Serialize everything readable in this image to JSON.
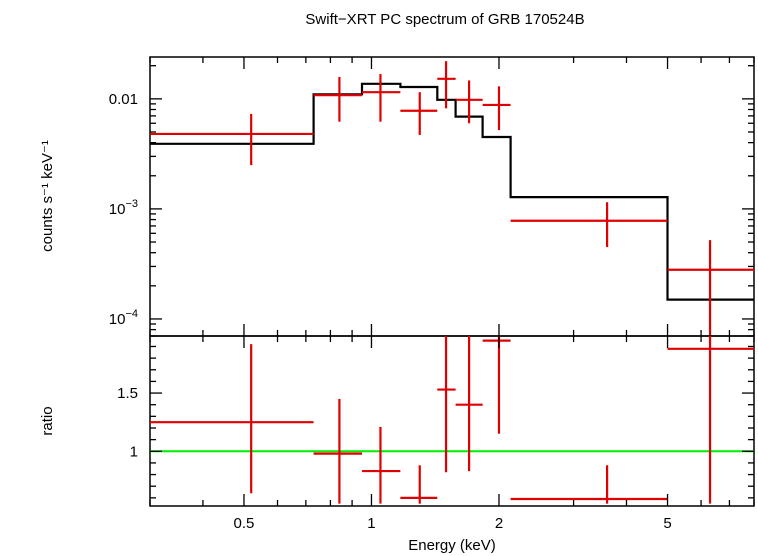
{
  "chart_data": [
    {
      "type": "scatter",
      "title": "Swift−XRT PC spectrum of GRB 170524B",
      "xlabel": "Energy (keV)",
      "ylabel": "counts s⁻¹ keV⁻¹",
      "x_scale": "log",
      "y_scale": "log",
      "xlim": [
        0.3,
        8.0
      ],
      "ylim": [
        7e-05,
        0.024
      ],
      "x_ticks": [
        {
          "value": 0.5,
          "label": "0.5"
        },
        {
          "value": 1,
          "label": "1"
        },
        {
          "value": 2,
          "label": "2"
        },
        {
          "value": 5,
          "label": "5"
        }
      ],
      "y_ticks": [
        {
          "value": 0.01,
          "label": "0.01",
          "base": "",
          "exp": ""
        },
        {
          "value": 0.001,
          "label": "",
          "base": "10",
          "exp": "−3"
        },
        {
          "value": 0.0001,
          "label": "",
          "base": "10",
          "exp": "−4"
        }
      ],
      "series": [
        {
          "kind": "data",
          "color": "#e00000",
          "points": [
            {
              "x": 0.52,
              "xlo": 0.3,
              "xhi": 0.73,
              "y": 0.0048,
              "ylo": 0.0025,
              "yhi": 0.0073
            },
            {
              "x": 0.84,
              "xlo": 0.73,
              "xhi": 0.95,
              "y": 0.0108,
              "ylo": 0.0062,
              "yhi": 0.0158
            },
            {
              "x": 1.05,
              "xlo": 0.95,
              "xhi": 1.17,
              "y": 0.0115,
              "ylo": 0.0062,
              "yhi": 0.0168
            },
            {
              "x": 1.3,
              "xlo": 1.17,
              "xhi": 1.43,
              "y": 0.0078,
              "ylo": 0.0047,
              "yhi": 0.0115
            },
            {
              "x": 1.5,
              "xlo": 1.43,
              "xhi": 1.58,
              "y": 0.0152,
              "ylo": 0.0082,
              "yhi": 0.022
            },
            {
              "x": 1.7,
              "xlo": 1.58,
              "xhi": 1.83,
              "y": 0.0098,
              "ylo": 0.006,
              "yhi": 0.0147
            },
            {
              "x": 2.0,
              "xlo": 1.83,
              "xhi": 2.13,
              "y": 0.0088,
              "ylo": 0.0052,
              "yhi": 0.013
            },
            {
              "x": 3.6,
              "xlo": 2.13,
              "xhi": 5.0,
              "y": 0.00078,
              "ylo": 0.00045,
              "yhi": 0.00115
            },
            {
              "x": 6.3,
              "xlo": 5.0,
              "xhi": 8.0,
              "y": 0.00028,
              "ylo": 7e-05,
              "yhi": 0.00052
            }
          ]
        },
        {
          "kind": "model",
          "color": "#000000",
          "steps": [
            {
              "xlo": 0.3,
              "xhi": 0.73,
              "y": 0.0039
            },
            {
              "xlo": 0.73,
              "xhi": 0.95,
              "y": 0.011
            },
            {
              "xlo": 0.95,
              "xhi": 1.17,
              "y": 0.0137
            },
            {
              "xlo": 1.17,
              "xhi": 1.43,
              "y": 0.0128
            },
            {
              "xlo": 1.43,
              "xhi": 1.58,
              "y": 0.0098
            },
            {
              "xlo": 1.58,
              "xhi": 1.83,
              "y": 0.0069
            },
            {
              "xlo": 1.83,
              "xhi": 2.13,
              "y": 0.0045
            },
            {
              "xlo": 2.13,
              "xhi": 5.0,
              "y": 0.00128
            },
            {
              "xlo": 5.0,
              "xhi": 8.0,
              "y": 0.00015
            }
          ]
        }
      ]
    },
    {
      "type": "scatter",
      "ylabel": "ratio",
      "x_scale": "log",
      "y_scale": "linear",
      "xlim": [
        0.3,
        8.0
      ],
      "ylim": [
        0.53,
        1.99
      ],
      "y_ticks": [
        {
          "value": 1,
          "label": "1"
        },
        {
          "value": 1.5,
          "label": "1.5"
        }
      ],
      "reference_line": {
        "y": 1,
        "color": "#00ee00"
      },
      "series": [
        {
          "kind": "ratio",
          "color": "#e00000",
          "points": [
            {
              "x": 0.52,
              "xlo": 0.3,
              "xhi": 0.73,
              "y": 1.25,
              "ylo": 0.64,
              "yhi": 1.92
            },
            {
              "x": 0.84,
              "xlo": 0.73,
              "xhi": 0.95,
              "y": 0.98,
              "ylo": 0.55,
              "yhi": 1.45
            },
            {
              "x": 1.05,
              "xlo": 0.95,
              "xhi": 1.17,
              "y": 0.83,
              "ylo": 0.55,
              "yhi": 1.21
            },
            {
              "x": 1.3,
              "xlo": 1.17,
              "xhi": 1.43,
              "y": 0.6,
              "ylo": 0.55,
              "yhi": 0.88
            },
            {
              "x": 1.5,
              "xlo": 1.43,
              "xhi": 1.58,
              "y": 1.53,
              "ylo": 0.82,
              "yhi": 1.99
            },
            {
              "x": 1.7,
              "xlo": 1.58,
              "xhi": 1.83,
              "y": 1.4,
              "ylo": 0.83,
              "yhi": 1.99
            },
            {
              "x": 2.0,
              "xlo": 1.83,
              "xhi": 2.13,
              "y": 1.95,
              "ylo": 1.15,
              "yhi": 1.99
            },
            {
              "x": 3.6,
              "xlo": 2.13,
              "xhi": 5.0,
              "y": 0.59,
              "ylo": 0.55,
              "yhi": 0.88
            },
            {
              "x": 6.3,
              "xlo": 5.0,
              "xhi": 8.0,
              "y": 1.88,
              "ylo": 0.55,
              "yhi": 1.99
            }
          ]
        }
      ]
    }
  ]
}
